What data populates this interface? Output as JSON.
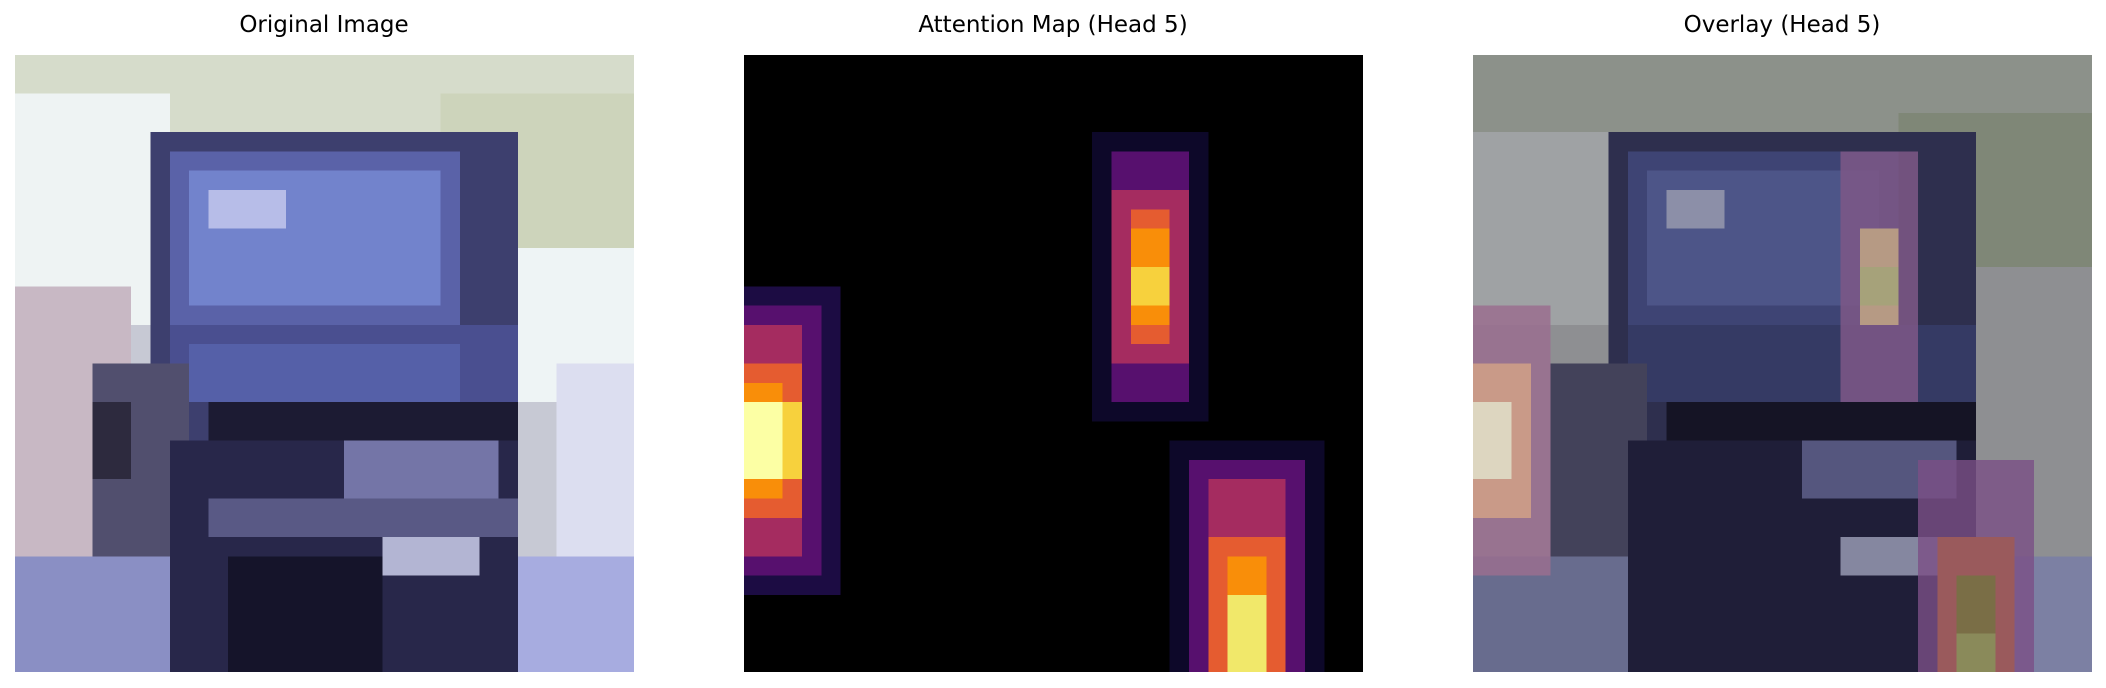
{
  "panels": [
    {
      "id": "original",
      "title": "Original Image",
      "image_description_icon": "photo-car-icon"
    },
    {
      "id": "attention",
      "title": "Attention Map (Head 5)",
      "colormap": "inferno"
    },
    {
      "id": "overlay",
      "title": "Overlay (Head 5)"
    }
  ],
  "colors": {
    "background": "#ffffff",
    "attention_background": "#000000",
    "hot_peak": "#fcffa4",
    "hot_mid": "#f98e09",
    "hot_low": "#57106e"
  }
}
